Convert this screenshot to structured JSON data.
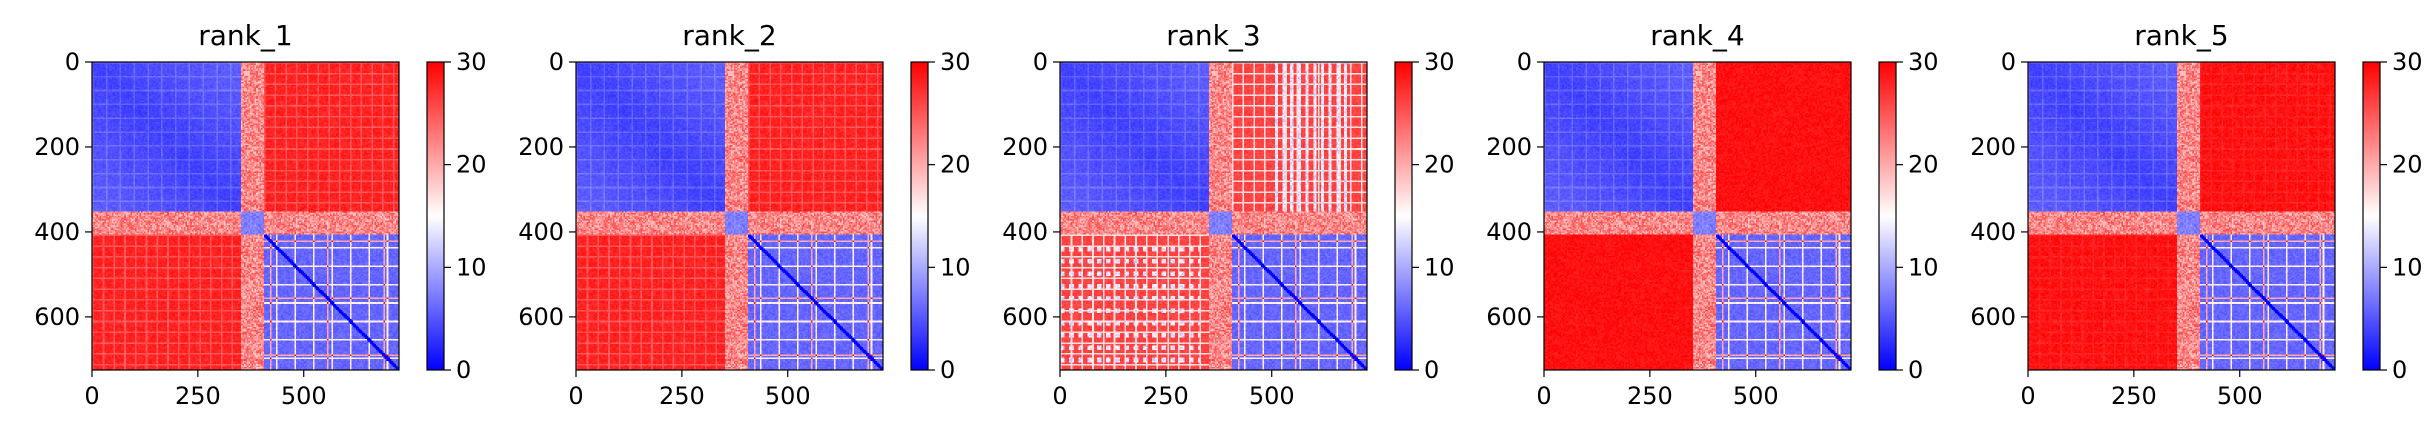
{
  "chart_data": [
    {
      "type": "heatmap",
      "title": "rank_1",
      "x_ticks": [
        0,
        250,
        500
      ],
      "y_ticks": [
        0,
        200,
        400,
        600
      ],
      "xlim": [
        0,
        725
      ],
      "ylim": [
        725,
        0
      ],
      "colorbar": {
        "ticks": [
          0,
          10,
          20,
          30
        ],
        "range": [
          0,
          30
        ],
        "colormap": "bwr"
      },
      "blocks": {
        "boundary_1": 350,
        "boundary_2": 405,
        "max_index": 725
      },
      "estimated_levels": {
        "block_a_within": 3,
        "block_b_within": 5,
        "between_blocks": 29,
        "stripe_rows_between": 24
      }
    },
    {
      "type": "heatmap",
      "title": "rank_2",
      "x_ticks": [
        0,
        250,
        500
      ],
      "y_ticks": [
        0,
        200,
        400,
        600
      ],
      "xlim": [
        0,
        725
      ],
      "ylim": [
        725,
        0
      ],
      "colorbar": {
        "ticks": [
          0,
          10,
          20,
          30
        ],
        "range": [
          0,
          30
        ],
        "colormap": "bwr"
      },
      "blocks": {
        "boundary_1": 350,
        "boundary_2": 405,
        "max_index": 725
      },
      "estimated_levels": {
        "block_a_within": 3,
        "block_b_within": 5,
        "between_blocks": 29,
        "stripe_rows_between": 24
      }
    },
    {
      "type": "heatmap",
      "title": "rank_3",
      "x_ticks": [
        0,
        250,
        500
      ],
      "y_ticks": [
        0,
        200,
        400,
        600
      ],
      "xlim": [
        0,
        725
      ],
      "ylim": [
        725,
        0
      ],
      "colorbar": {
        "ticks": [
          0,
          10,
          20,
          30
        ],
        "range": [
          0,
          30
        ],
        "colormap": "bwr"
      },
      "blocks": {
        "boundary_1": 350,
        "boundary_2": 405,
        "max_index": 725
      },
      "estimated_levels": {
        "block_a_within": 3,
        "block_b_within": 5,
        "between_blocks": 27,
        "stripe_rows_between": 16
      }
    },
    {
      "type": "heatmap",
      "title": "rank_4",
      "x_ticks": [
        0,
        250,
        500
      ],
      "y_ticks": [
        0,
        200,
        400,
        600
      ],
      "xlim": [
        0,
        725
      ],
      "ylim": [
        725,
        0
      ],
      "colorbar": {
        "ticks": [
          0,
          10,
          20,
          30
        ],
        "range": [
          0,
          30
        ],
        "colormap": "bwr"
      },
      "blocks": {
        "boundary_1": 350,
        "boundary_2": 405,
        "max_index": 725
      },
      "estimated_levels": {
        "block_a_within": 3,
        "block_b_within": 5,
        "between_blocks": 30,
        "stripe_rows_between": 28
      }
    },
    {
      "type": "heatmap",
      "title": "rank_5",
      "x_ticks": [
        0,
        250,
        500
      ],
      "y_ticks": [
        0,
        200,
        400,
        600
      ],
      "xlim": [
        0,
        725
      ],
      "ylim": [
        725,
        0
      ],
      "colorbar": {
        "ticks": [
          0,
          10,
          20,
          30
        ],
        "range": [
          0,
          30
        ],
        "colormap": "bwr"
      },
      "blocks": {
        "boundary_1": 350,
        "boundary_2": 405,
        "max_index": 725
      },
      "estimated_levels": {
        "block_a_within": 3,
        "block_b_within": 5,
        "between_blocks": 30,
        "stripe_rows_between": 27
      }
    }
  ]
}
